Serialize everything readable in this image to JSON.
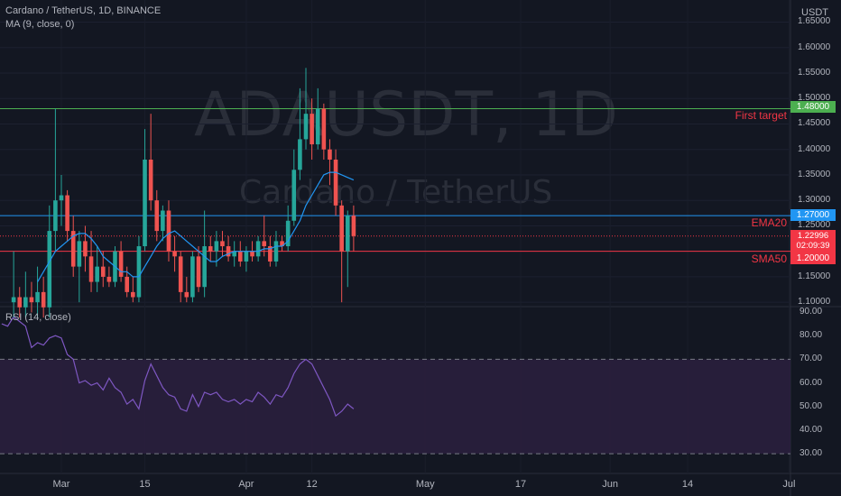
{
  "header": {
    "title": "Cardano / TetherUS, 1D, BINANCE",
    "indicator": "MA (9, close, 0)",
    "currency": "USDT"
  },
  "watermark": {
    "symbol": "ADAUSDT, 1D",
    "name": "Cardano / TetherUS"
  },
  "rsi_panel": {
    "label": "RSI (14, close)"
  },
  "levels": {
    "first_target": {
      "label": "First target",
      "value": "1.48000",
      "color": "#4caf50",
      "label_color": "#f23645"
    },
    "ema20": {
      "label": "EMA20",
      "value": "1.27000",
      "color": "#2196f3",
      "label_color": "#f23645"
    },
    "sma50": {
      "label": "SMA50",
      "value": "1.20000",
      "color": "#f23645",
      "label_color": "#f23645"
    },
    "last_price": {
      "value": "1.22996",
      "countdown": "02:09:39",
      "color": "#f23645"
    }
  },
  "chart_data": {
    "type": "candlestick",
    "price_axis": {
      "ticks": [
        "1.65000",
        "1.60000",
        "1.55000",
        "1.50000",
        "1.45000",
        "1.40000",
        "1.35000",
        "1.30000",
        "1.25000",
        "1.20000",
        "1.15000",
        "1.10000"
      ],
      "range": [
        1.095,
        1.665
      ]
    },
    "rsi_axis": {
      "ticks": [
        "90.00",
        "80.00",
        "70.00",
        "60.00",
        "50.00",
        "40.00",
        "30.00"
      ],
      "range": [
        27,
        90
      ],
      "bands": [
        30,
        70
      ]
    },
    "x_ticks": [
      {
        "label": "Mar",
        "day": 0
      },
      {
        "label": "15",
        "day": 14
      },
      {
        "label": "Apr",
        "day": 31
      },
      {
        "label": "12",
        "day": 42
      },
      {
        "label": "May",
        "day": 61
      },
      {
        "label": "17",
        "day": 77
      },
      {
        "label": "Jun",
        "day": 92
      },
      {
        "label": "14",
        "day": 105
      },
      {
        "label": "Jul",
        "day": 122
      }
    ],
    "candles": [
      {
        "day": -8,
        "o": 1.1,
        "h": 1.2,
        "l": 1.07,
        "c": 1.11
      },
      {
        "day": -7,
        "o": 1.11,
        "h": 1.13,
        "l": 1.07,
        "c": 1.09
      },
      {
        "day": -6,
        "o": 1.09,
        "h": 1.16,
        "l": 1.07,
        "c": 1.11
      },
      {
        "day": -5,
        "o": 1.11,
        "h": 1.14,
        "l": 1.08,
        "c": 1.1
      },
      {
        "day": -4,
        "o": 1.1,
        "h": 1.17,
        "l": 1.07,
        "c": 1.12
      },
      {
        "day": -3,
        "o": 1.12,
        "h": 1.15,
        "l": 1.07,
        "c": 1.09
      },
      {
        "day": -2,
        "o": 1.09,
        "h": 1.29,
        "l": 1.07,
        "c": 1.24
      },
      {
        "day": -1,
        "o": 1.24,
        "h": 1.48,
        "l": 1.2,
        "c": 1.3
      },
      {
        "day": 0,
        "o": 1.3,
        "h": 1.35,
        "l": 1.25,
        "c": 1.31
      },
      {
        "day": 1,
        "o": 1.31,
        "h": 1.32,
        "l": 1.22,
        "c": 1.24
      },
      {
        "day": 2,
        "o": 1.24,
        "h": 1.27,
        "l": 1.15,
        "c": 1.17
      },
      {
        "day": 3,
        "o": 1.17,
        "h": 1.24,
        "l": 1.1,
        "c": 1.22
      },
      {
        "day": 4,
        "o": 1.22,
        "h": 1.25,
        "l": 1.16,
        "c": 1.19
      },
      {
        "day": 5,
        "o": 1.19,
        "h": 1.24,
        "l": 1.12,
        "c": 1.14
      },
      {
        "day": 6,
        "o": 1.14,
        "h": 1.21,
        "l": 1.12,
        "c": 1.17
      },
      {
        "day": 7,
        "o": 1.17,
        "h": 1.2,
        "l": 1.13,
        "c": 1.15
      },
      {
        "day": 8,
        "o": 1.15,
        "h": 1.17,
        "l": 1.13,
        "c": 1.14
      },
      {
        "day": 9,
        "o": 1.14,
        "h": 1.21,
        "l": 1.13,
        "c": 1.2
      },
      {
        "day": 10,
        "o": 1.2,
        "h": 1.22,
        "l": 1.14,
        "c": 1.15
      },
      {
        "day": 11,
        "o": 1.15,
        "h": 1.17,
        "l": 1.11,
        "c": 1.12
      },
      {
        "day": 12,
        "o": 1.12,
        "h": 1.15,
        "l": 1.1,
        "c": 1.11
      },
      {
        "day": 13,
        "o": 1.11,
        "h": 1.23,
        "l": 1.1,
        "c": 1.21
      },
      {
        "day": 14,
        "o": 1.21,
        "h": 1.44,
        "l": 1.2,
        "c": 1.38
      },
      {
        "day": 15,
        "o": 1.38,
        "h": 1.47,
        "l": 1.28,
        "c": 1.3
      },
      {
        "day": 16,
        "o": 1.3,
        "h": 1.32,
        "l": 1.22,
        "c": 1.24
      },
      {
        "day": 17,
        "o": 1.24,
        "h": 1.29,
        "l": 1.22,
        "c": 1.28
      },
      {
        "day": 18,
        "o": 1.28,
        "h": 1.3,
        "l": 1.18,
        "c": 1.2
      },
      {
        "day": 19,
        "o": 1.2,
        "h": 1.23,
        "l": 1.16,
        "c": 1.19
      },
      {
        "day": 20,
        "o": 1.19,
        "h": 1.2,
        "l": 1.1,
        "c": 1.12
      },
      {
        "day": 21,
        "o": 1.12,
        "h": 1.15,
        "l": 1.1,
        "c": 1.11
      },
      {
        "day": 22,
        "o": 1.11,
        "h": 1.2,
        "l": 1.1,
        "c": 1.19
      },
      {
        "day": 23,
        "o": 1.19,
        "h": 1.21,
        "l": 1.12,
        "c": 1.13
      },
      {
        "day": 24,
        "o": 1.13,
        "h": 1.28,
        "l": 1.11,
        "c": 1.21
      },
      {
        "day": 25,
        "o": 1.21,
        "h": 1.23,
        "l": 1.18,
        "c": 1.2
      },
      {
        "day": 26,
        "o": 1.2,
        "h": 1.24,
        "l": 1.17,
        "c": 1.22
      },
      {
        "day": 27,
        "o": 1.22,
        "h": 1.24,
        "l": 1.19,
        "c": 1.21
      },
      {
        "day": 28,
        "o": 1.21,
        "h": 1.23,
        "l": 1.18,
        "c": 1.19
      },
      {
        "day": 29,
        "o": 1.19,
        "h": 1.22,
        "l": 1.17,
        "c": 1.2
      },
      {
        "day": 30,
        "o": 1.2,
        "h": 1.22,
        "l": 1.17,
        "c": 1.18
      },
      {
        "day": 31,
        "o": 1.18,
        "h": 1.21,
        "l": 1.16,
        "c": 1.2
      },
      {
        "day": 32,
        "o": 1.2,
        "h": 1.22,
        "l": 1.18,
        "c": 1.19
      },
      {
        "day": 33,
        "o": 1.19,
        "h": 1.23,
        "l": 1.18,
        "c": 1.22
      },
      {
        "day": 34,
        "o": 1.22,
        "h": 1.27,
        "l": 1.19,
        "c": 1.21
      },
      {
        "day": 35,
        "o": 1.21,
        "h": 1.23,
        "l": 1.17,
        "c": 1.18
      },
      {
        "day": 36,
        "o": 1.18,
        "h": 1.24,
        "l": 1.17,
        "c": 1.22
      },
      {
        "day": 37,
        "o": 1.22,
        "h": 1.23,
        "l": 1.2,
        "c": 1.21
      },
      {
        "day": 38,
        "o": 1.21,
        "h": 1.29,
        "l": 1.2,
        "c": 1.26
      },
      {
        "day": 39,
        "o": 1.26,
        "h": 1.4,
        "l": 1.25,
        "c": 1.36
      },
      {
        "day": 40,
        "o": 1.36,
        "h": 1.52,
        "l": 1.34,
        "c": 1.42
      },
      {
        "day": 41,
        "o": 1.42,
        "h": 1.56,
        "l": 1.4,
        "c": 1.47
      },
      {
        "day": 42,
        "o": 1.47,
        "h": 1.5,
        "l": 1.38,
        "c": 1.41
      },
      {
        "day": 43,
        "o": 1.41,
        "h": 1.52,
        "l": 1.4,
        "c": 1.48
      },
      {
        "day": 44,
        "o": 1.48,
        "h": 1.49,
        "l": 1.38,
        "c": 1.4
      },
      {
        "day": 45,
        "o": 1.4,
        "h": 1.42,
        "l": 1.33,
        "c": 1.38
      },
      {
        "day": 46,
        "o": 1.38,
        "h": 1.4,
        "l": 1.27,
        "c": 1.29
      },
      {
        "day": 47,
        "o": 1.29,
        "h": 1.3,
        "l": 1.1,
        "c": 1.2
      },
      {
        "day": 48,
        "o": 1.2,
        "h": 1.28,
        "l": 1.13,
        "c": 1.27
      },
      {
        "day": 49,
        "o": 1.27,
        "h": 1.29,
        "l": 1.2,
        "c": 1.23
      }
    ],
    "ma9": [
      {
        "day": -4,
        "v": 1.14
      },
      {
        "day": -3,
        "v": 1.16
      },
      {
        "day": -2,
        "v": 1.18
      },
      {
        "day": -1,
        "v": 1.2
      },
      {
        "day": 0,
        "v": 1.21
      },
      {
        "day": 1,
        "v": 1.22
      },
      {
        "day": 2,
        "v": 1.23
      },
      {
        "day": 3,
        "v": 1.235
      },
      {
        "day": 4,
        "v": 1.235
      },
      {
        "day": 5,
        "v": 1.225
      },
      {
        "day": 6,
        "v": 1.21
      },
      {
        "day": 7,
        "v": 1.19
      },
      {
        "day": 8,
        "v": 1.18
      },
      {
        "day": 9,
        "v": 1.17
      },
      {
        "day": 10,
        "v": 1.16
      },
      {
        "day": 11,
        "v": 1.16
      },
      {
        "day": 12,
        "v": 1.15
      },
      {
        "day": 13,
        "v": 1.15
      },
      {
        "day": 14,
        "v": 1.17
      },
      {
        "day": 15,
        "v": 1.19
      },
      {
        "day": 16,
        "v": 1.21
      },
      {
        "day": 17,
        "v": 1.225
      },
      {
        "day": 18,
        "v": 1.235
      },
      {
        "day": 19,
        "v": 1.24
      },
      {
        "day": 20,
        "v": 1.23
      },
      {
        "day": 21,
        "v": 1.22
      },
      {
        "day": 22,
        "v": 1.21
      },
      {
        "day": 23,
        "v": 1.2
      },
      {
        "day": 24,
        "v": 1.19
      },
      {
        "day": 25,
        "v": 1.18
      },
      {
        "day": 26,
        "v": 1.18
      },
      {
        "day": 27,
        "v": 1.19
      },
      {
        "day": 28,
        "v": 1.195
      },
      {
        "day": 29,
        "v": 1.2
      },
      {
        "day": 30,
        "v": 1.2
      },
      {
        "day": 31,
        "v": 1.2
      },
      {
        "day": 32,
        "v": 1.2
      },
      {
        "day": 33,
        "v": 1.2
      },
      {
        "day": 34,
        "v": 1.205
      },
      {
        "day": 35,
        "v": 1.205
      },
      {
        "day": 36,
        "v": 1.21
      },
      {
        "day": 37,
        "v": 1.21
      },
      {
        "day": 38,
        "v": 1.22
      },
      {
        "day": 39,
        "v": 1.24
      },
      {
        "day": 40,
        "v": 1.26
      },
      {
        "day": 41,
        "v": 1.29
      },
      {
        "day": 42,
        "v": 1.31
      },
      {
        "day": 43,
        "v": 1.33
      },
      {
        "day": 44,
        "v": 1.35
      },
      {
        "day": 45,
        "v": 1.355
      },
      {
        "day": 46,
        "v": 1.355
      },
      {
        "day": 47,
        "v": 1.35
      },
      {
        "day": 48,
        "v": 1.345
      },
      {
        "day": 49,
        "v": 1.34
      }
    ],
    "rsi": [
      {
        "day": -10,
        "v": 85
      },
      {
        "day": -9,
        "v": 84
      },
      {
        "day": -8,
        "v": 88
      },
      {
        "day": -7,
        "v": 86
      },
      {
        "day": -6,
        "v": 84
      },
      {
        "day": -5,
        "v": 75
      },
      {
        "day": -4,
        "v": 77
      },
      {
        "day": -3,
        "v": 76
      },
      {
        "day": -2,
        "v": 79
      },
      {
        "day": -1,
        "v": 80
      },
      {
        "day": 0,
        "v": 79
      },
      {
        "day": 1,
        "v": 72
      },
      {
        "day": 2,
        "v": 70
      },
      {
        "day": 3,
        "v": 60
      },
      {
        "day": 4,
        "v": 61
      },
      {
        "day": 5,
        "v": 59
      },
      {
        "day": 6,
        "v": 60
      },
      {
        "day": 7,
        "v": 57
      },
      {
        "day": 8,
        "v": 62
      },
      {
        "day": 9,
        "v": 58
      },
      {
        "day": 10,
        "v": 56
      },
      {
        "day": 11,
        "v": 51
      },
      {
        "day": 12,
        "v": 53
      },
      {
        "day": 13,
        "v": 49
      },
      {
        "day": 14,
        "v": 61
      },
      {
        "day": 15,
        "v": 68
      },
      {
        "day": 16,
        "v": 63
      },
      {
        "day": 17,
        "v": 58
      },
      {
        "day": 18,
        "v": 55
      },
      {
        "day": 19,
        "v": 54
      },
      {
        "day": 20,
        "v": 49
      },
      {
        "day": 21,
        "v": 48
      },
      {
        "day": 22,
        "v": 55
      },
      {
        "day": 23,
        "v": 50
      },
      {
        "day": 24,
        "v": 56
      },
      {
        "day": 25,
        "v": 55
      },
      {
        "day": 26,
        "v": 56
      },
      {
        "day": 27,
        "v": 53
      },
      {
        "day": 28,
        "v": 52
      },
      {
        "day": 29,
        "v": 53
      },
      {
        "day": 30,
        "v": 51
      },
      {
        "day": 31,
        "v": 53
      },
      {
        "day": 32,
        "v": 52
      },
      {
        "day": 33,
        "v": 56
      },
      {
        "day": 34,
        "v": 54
      },
      {
        "day": 35,
        "v": 51
      },
      {
        "day": 36,
        "v": 55
      },
      {
        "day": 37,
        "v": 54
      },
      {
        "day": 38,
        "v": 58
      },
      {
        "day": 39,
        "v": 64
      },
      {
        "day": 40,
        "v": 68
      },
      {
        "day": 41,
        "v": 70
      },
      {
        "day": 42,
        "v": 68
      },
      {
        "day": 43,
        "v": 63
      },
      {
        "day": 44,
        "v": 58
      },
      {
        "day": 45,
        "v": 53
      },
      {
        "day": 46,
        "v": 46
      },
      {
        "day": 47,
        "v": 48
      },
      {
        "day": 48,
        "v": 51
      },
      {
        "day": 49,
        "v": 49
      }
    ],
    "colors": {
      "up": "#26a69a",
      "down": "#ef5350",
      "ma": "#2196f3",
      "rsi": "#7e57c2",
      "rsi_band": "#2a1f3d"
    }
  }
}
